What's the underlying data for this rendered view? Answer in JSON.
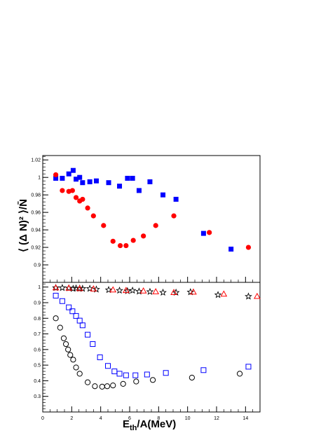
{
  "chart_data": [
    {
      "type": "scatter",
      "panel": "top",
      "ylabel": "⟨ (Δ N)² ⟩/N̄",
      "xlim": [
        0,
        15
      ],
      "ylim": [
        0.88,
        1.025
      ],
      "y_ticks": [
        0.9,
        0.92,
        0.94,
        0.96,
        0.98,
        1,
        1.02
      ],
      "y_tick_labels": [
        "0.9",
        "0.92",
        "0.94",
        "0.96",
        "0.98",
        "1",
        "1.02"
      ],
      "grid": false,
      "series": [
        {
          "marker": "filled-square",
          "color": "#0000ff",
          "points": [
            [
              0.9,
              0.999
            ],
            [
              1.35,
              0.999
            ],
            [
              1.8,
              1.004
            ],
            [
              2.1,
              1.008
            ],
            [
              2.3,
              0.998
            ],
            [
              2.55,
              1.0
            ],
            [
              2.75,
              0.994
            ],
            [
              3.25,
              0.995
            ],
            [
              3.7,
              0.996
            ],
            [
              4.55,
              0.994
            ],
            [
              5.3,
              0.99
            ],
            [
              5.85,
              0.999
            ],
            [
              6.2,
              0.999
            ],
            [
              6.65,
              0.985
            ],
            [
              7.4,
              0.995
            ],
            [
              8.3,
              0.98
            ],
            [
              9.2,
              0.975
            ],
            [
              11.1,
              0.936
            ],
            [
              13.0,
              0.918
            ]
          ]
        },
        {
          "marker": "filled-circle",
          "color": "#ff0000",
          "points": [
            [
              0.9,
              1.003
            ],
            [
              1.35,
              0.985
            ],
            [
              1.8,
              0.984
            ],
            [
              2.05,
              0.985
            ],
            [
              2.3,
              0.977
            ],
            [
              2.55,
              0.973
            ],
            [
              2.75,
              0.975
            ],
            [
              3.1,
              0.965
            ],
            [
              3.5,
              0.956
            ],
            [
              4.2,
              0.945
            ],
            [
              4.85,
              0.927
            ],
            [
              5.35,
              0.922
            ],
            [
              5.75,
              0.922
            ],
            [
              6.25,
              0.928
            ],
            [
              6.95,
              0.933
            ],
            [
              7.8,
              0.945
            ],
            [
              9.05,
              0.956
            ],
            [
              11.5,
              0.937
            ],
            [
              14.2,
              0.92
            ]
          ]
        }
      ]
    },
    {
      "type": "scatter",
      "panel": "bottom",
      "xlabel": "E_th/A(MeV)",
      "xlim": [
        0,
        15
      ],
      "ylim": [
        0.2,
        1.03
      ],
      "x_ticks": [
        0,
        2,
        4,
        6,
        8,
        10,
        12,
        14
      ],
      "x_tick_labels": [
        "0",
        "2",
        "4",
        "6",
        "8",
        "10",
        "12",
        "14"
      ],
      "y_ticks": [
        0.3,
        0.4,
        0.5,
        0.6,
        0.7,
        0.8,
        0.9,
        1
      ],
      "y_tick_labels": [
        "0.3",
        "0.4",
        "0.5",
        "0.6",
        "0.7",
        "0.8",
        "0.9",
        "1"
      ],
      "grid": false,
      "series": [
        {
          "marker": "open-star",
          "color": "#000000",
          "points": [
            [
              0.9,
              0.995
            ],
            [
              1.35,
              0.995
            ],
            [
              1.8,
              0.993
            ],
            [
              2.1,
              0.99
            ],
            [
              2.3,
              0.992
            ],
            [
              2.55,
              0.991
            ],
            [
              2.75,
              0.99
            ],
            [
              3.25,
              0.99
            ],
            [
              3.7,
              0.985
            ],
            [
              4.55,
              0.982
            ],
            [
              5.3,
              0.978
            ],
            [
              5.85,
              0.975
            ],
            [
              6.2,
              0.978
            ],
            [
              6.65,
              0.972
            ],
            [
              7.4,
              0.97
            ],
            [
              8.3,
              0.965
            ],
            [
              9.2,
              0.965
            ],
            [
              10.2,
              0.968
            ],
            [
              12.1,
              0.95
            ],
            [
              14.2,
              0.94
            ]
          ]
        },
        {
          "marker": "open-triangle",
          "color": "#ff0000",
          "points": [
            [
              0.9,
              0.995
            ],
            [
              1.8,
              0.993
            ],
            [
              2.55,
              0.99
            ],
            [
              3.5,
              0.988
            ],
            [
              4.85,
              0.982
            ],
            [
              5.75,
              0.978
            ],
            [
              6.95,
              0.975
            ],
            [
              7.8,
              0.97
            ],
            [
              9.05,
              0.965
            ],
            [
              10.4,
              0.968
            ],
            [
              12.5,
              0.955
            ],
            [
              14.8,
              0.94
            ]
          ]
        },
        {
          "marker": "open-square",
          "color": "#0000ff",
          "points": [
            [
              0.9,
              0.945
            ],
            [
              1.35,
              0.91
            ],
            [
              1.8,
              0.87
            ],
            [
              2.05,
              0.845
            ],
            [
              2.3,
              0.815
            ],
            [
              2.55,
              0.785
            ],
            [
              2.75,
              0.755
            ],
            [
              3.1,
              0.695
            ],
            [
              3.45,
              0.635
            ],
            [
              3.95,
              0.55
            ],
            [
              4.5,
              0.495
            ],
            [
              4.95,
              0.46
            ],
            [
              5.3,
              0.445
            ],
            [
              5.75,
              0.435
            ],
            [
              6.4,
              0.435
            ],
            [
              7.2,
              0.44
            ],
            [
              8.5,
              0.45
            ],
            [
              11.1,
              0.468
            ],
            [
              14.2,
              0.49
            ]
          ]
        },
        {
          "marker": "open-circle",
          "color": "#000000",
          "points": [
            [
              0.9,
              0.8
            ],
            [
              1.2,
              0.74
            ],
            [
              1.45,
              0.672
            ],
            [
              1.6,
              0.635
            ],
            [
              1.75,
              0.6
            ],
            [
              1.9,
              0.565
            ],
            [
              2.1,
              0.535
            ],
            [
              2.3,
              0.485
            ],
            [
              2.55,
              0.445
            ],
            [
              3.1,
              0.39
            ],
            [
              3.6,
              0.365
            ],
            [
              4.1,
              0.362
            ],
            [
              4.45,
              0.365
            ],
            [
              4.85,
              0.37
            ],
            [
              5.55,
              0.38
            ],
            [
              6.45,
              0.395
            ],
            [
              7.6,
              0.405
            ],
            [
              10.3,
              0.42
            ],
            [
              13.6,
              0.445
            ]
          ]
        }
      ]
    }
  ]
}
